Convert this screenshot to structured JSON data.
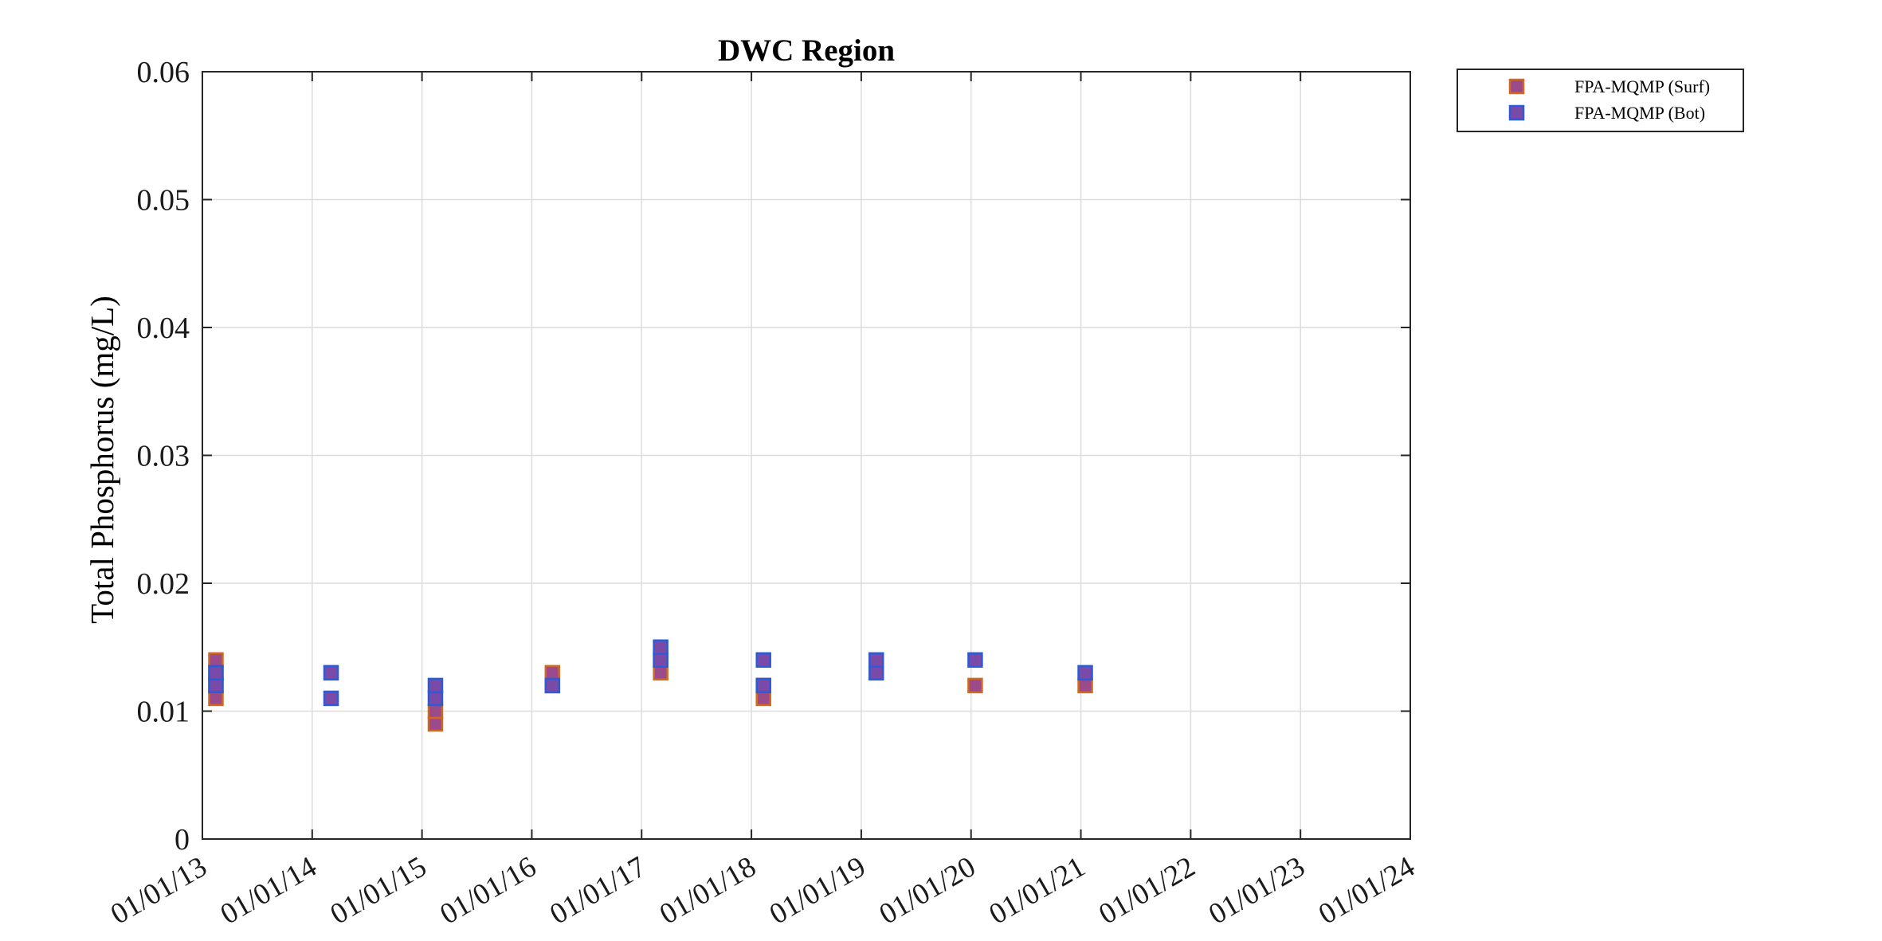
{
  "chart_data": {
    "type": "scatter",
    "title": "DWC Region",
    "ylabel": "Total Phosphorus (mg/L)",
    "xlabel": "",
    "ylim": [
      0,
      0.06
    ],
    "yticks": [
      0,
      0.01,
      0.02,
      0.03,
      0.04,
      0.05,
      0.06
    ],
    "ytick_labels": [
      "0",
      "0.01",
      "0.02",
      "0.03",
      "0.04",
      "0.05",
      "0.06"
    ],
    "xlim": [
      "2013-01-01",
      "2024-01-01"
    ],
    "xtick_labels": [
      "01/01/13",
      "01/01/14",
      "01/01/15",
      "01/01/16",
      "01/01/17",
      "01/01/18",
      "01/01/19",
      "01/01/20",
      "01/01/21",
      "01/01/22",
      "01/01/23",
      "01/01/24"
    ],
    "grid": true,
    "legend_position": "outside-top-right",
    "series": [
      {
        "name": "FPA-MQMP (Surf)",
        "marker": "square",
        "face_color": "#9b4a8c",
        "edge_color": "#d2691e",
        "points": [
          {
            "x": "2013-02-15",
            "y": 0.011
          },
          {
            "x": "2013-02-15",
            "y": 0.012
          },
          {
            "x": "2013-02-15",
            "y": 0.013
          },
          {
            "x": "2013-02-15",
            "y": 0.014
          },
          {
            "x": "2015-02-15",
            "y": 0.009
          },
          {
            "x": "2015-02-15",
            "y": 0.01
          },
          {
            "x": "2016-03-10",
            "y": 0.012
          },
          {
            "x": "2016-03-10",
            "y": 0.013
          },
          {
            "x": "2017-03-05",
            "y": 0.013
          },
          {
            "x": "2017-03-05",
            "y": 0.014
          },
          {
            "x": "2018-02-10",
            "y": 0.011
          },
          {
            "x": "2018-02-10",
            "y": 0.012
          },
          {
            "x": "2020-01-15",
            "y": 0.012
          },
          {
            "x": "2021-01-15",
            "y": 0.012
          }
        ]
      },
      {
        "name": "FPA-MQMP (Bot)",
        "marker": "square",
        "face_color": "#7a4aa8",
        "edge_color": "#2b5bd7",
        "points": [
          {
            "x": "2013-02-15",
            "y": 0.012
          },
          {
            "x": "2013-02-15",
            "y": 0.013
          },
          {
            "x": "2014-03-05",
            "y": 0.011
          },
          {
            "x": "2014-03-05",
            "y": 0.013
          },
          {
            "x": "2015-02-15",
            "y": 0.011
          },
          {
            "x": "2015-02-15",
            "y": 0.012
          },
          {
            "x": "2016-03-10",
            "y": 0.012
          },
          {
            "x": "2017-03-05",
            "y": 0.014
          },
          {
            "x": "2017-03-05",
            "y": 0.015
          },
          {
            "x": "2018-02-10",
            "y": 0.012
          },
          {
            "x": "2018-02-10",
            "y": 0.014
          },
          {
            "x": "2019-02-20",
            "y": 0.013
          },
          {
            "x": "2019-02-20",
            "y": 0.014
          },
          {
            "x": "2020-01-15",
            "y": 0.014
          },
          {
            "x": "2021-01-15",
            "y": 0.013
          }
        ]
      }
    ]
  }
}
